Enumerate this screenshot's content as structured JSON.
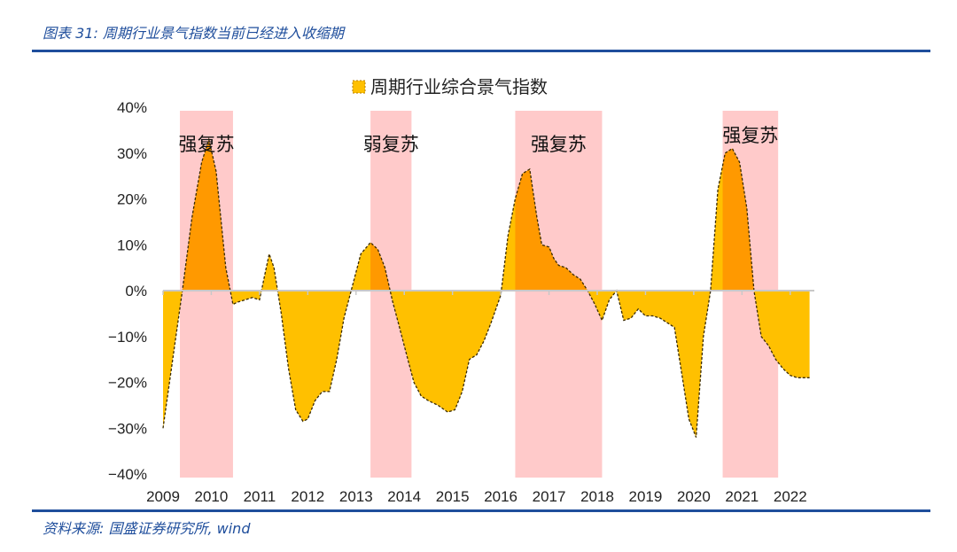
{
  "header": {
    "title": "图表 31: 周期行业景气指数当前已经进入收缩期"
  },
  "footer": {
    "source": "资料来源: 国盛证券研究所, wind"
  },
  "colors": {
    "accent": "#1f4e9c",
    "fill_neg": "#FFC000",
    "fill_pos": "#FF9900",
    "band": "#FFCACA"
  },
  "chart_data": {
    "type": "area",
    "legend": "周期行业综合景气指数",
    "legend_position": "top-center",
    "ylim": [
      -40,
      40
    ],
    "y_ticks": [
      "40%",
      "30%",
      "20%",
      "10%",
      "0%",
      "−10%",
      "−20%",
      "−30%",
      "−40%"
    ],
    "y_tick_values": [
      40,
      30,
      20,
      10,
      0,
      -10,
      -20,
      -30,
      -40
    ],
    "x_ticks": [
      "2009",
      "2010",
      "2011",
      "2012",
      "2013",
      "2014",
      "2015",
      "2016",
      "2017",
      "2018",
      "2019",
      "2020",
      "2021",
      "2022"
    ],
    "x_tick_values": [
      2009,
      2010,
      2011,
      2012,
      2013,
      2014,
      2015,
      2016,
      2017,
      2018,
      2019,
      2020,
      2021,
      2022
    ],
    "xlim": [
      2009,
      2022.5
    ],
    "grid": false,
    "bands": [
      {
        "label": "强复苏",
        "x_start": 2009.35,
        "x_end": 2010.45
      },
      {
        "label": "弱复苏",
        "x_start": 2013.3,
        "x_end": 2014.15
      },
      {
        "label": "强复苏",
        "x_start": 2016.3,
        "x_end": 2018.1
      },
      {
        "label": "强复苏",
        "x_start": 2020.6,
        "x_end": 2021.75
      }
    ],
    "series": [
      {
        "name": "周期行业综合景气指数",
        "x": [
          2009.0,
          2009.2,
          2009.4,
          2009.6,
          2009.8,
          2009.95,
          2010.1,
          2010.3,
          2010.45,
          2010.55,
          2010.7,
          2010.85,
          2011.0,
          2011.1,
          2011.2,
          2011.3,
          2011.45,
          2011.6,
          2011.75,
          2011.9,
          2012.0,
          2012.15,
          2012.3,
          2012.45,
          2012.6,
          2012.75,
          2012.9,
          2013.1,
          2013.3,
          2013.45,
          2013.6,
          2013.75,
          2013.9,
          2014.05,
          2014.2,
          2014.35,
          2014.5,
          2014.7,
          2014.9,
          2015.05,
          2015.2,
          2015.35,
          2015.5,
          2015.65,
          2015.8,
          2016.0,
          2016.15,
          2016.3,
          2016.45,
          2016.6,
          2016.75,
          2016.85,
          2017.0,
          2017.1,
          2017.2,
          2017.35,
          2017.5,
          2017.65,
          2017.8,
          2017.95,
          2018.1,
          2018.25,
          2018.4,
          2018.55,
          2018.7,
          2018.85,
          2019.0,
          2019.15,
          2019.3,
          2019.45,
          2019.6,
          2019.75,
          2019.9,
          2020.05,
          2020.2,
          2020.35,
          2020.5,
          2020.65,
          2020.8,
          2020.95,
          2021.1,
          2021.25,
          2021.4,
          2021.55,
          2021.7,
          2021.85,
          2022.0,
          2022.15,
          2022.3,
          2022.4
        ],
        "values": [
          -30,
          -15,
          0,
          16,
          28,
          33,
          26,
          5,
          -3,
          -2.5,
          -2,
          -1.5,
          -2,
          3,
          8,
          5,
          -5,
          -17,
          -26,
          -28.5,
          -28,
          -24,
          -22,
          -22,
          -15,
          -6,
          0,
          8,
          10.5,
          9,
          5,
          -2,
          -8,
          -14,
          -20,
          -23,
          -24,
          -25,
          -26.5,
          -26,
          -22,
          -15,
          -14,
          -11,
          -7,
          -1,
          12,
          20,
          25.5,
          26.5,
          16,
          10,
          9.5,
          7,
          5.5,
          5,
          3.5,
          2.5,
          0,
          -3,
          -6.5,
          -2,
          0,
          -6.5,
          -6,
          -4,
          -5.5,
          -5.5,
          -6,
          -7,
          -8,
          -18,
          -28,
          -32,
          -10,
          0,
          22,
          30,
          31,
          28,
          18,
          0,
          -10,
          -12,
          -15,
          -17,
          -18.5,
          -19,
          -19,
          -19
        ]
      }
    ],
    "annotations": [
      "强复苏",
      "弱复苏",
      "强复苏",
      "强复苏"
    ]
  }
}
